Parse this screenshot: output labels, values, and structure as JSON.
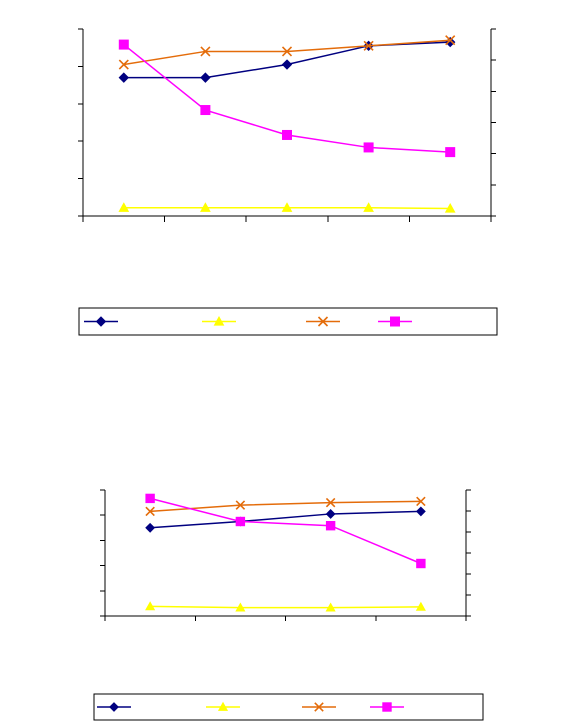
{
  "colors": {
    "navy": "#000080",
    "yellow": "#FFFF00",
    "orange": "#E46C0A",
    "magenta": "#FF00FF"
  },
  "chart_data": [
    {
      "type": "line",
      "dual_axis": true,
      "x": [
        1,
        2,
        3,
        4,
        5
      ],
      "left_ylim": [
        0,
        5
      ],
      "left_ticks": 6,
      "right_ylim": [
        0,
        6
      ],
      "right_ticks": 7,
      "xticks": 6,
      "grid": false,
      "legend_position": "bottom",
      "series": [
        {
          "marker": "diamond",
          "color": "#000080",
          "axis": "left",
          "values": [
            3.7,
            3.7,
            4.05,
            4.55,
            4.65
          ]
        },
        {
          "marker": "triangle",
          "color": "#FFFF00",
          "axis": "left",
          "values": [
            0.22,
            0.22,
            0.22,
            0.22,
            0.2
          ]
        },
        {
          "marker": "x",
          "color": "#E46C0A",
          "axis": "left",
          "values": [
            4.05,
            4.4,
            4.4,
            4.55,
            4.7
          ]
        },
        {
          "marker": "square",
          "color": "#FF00FF",
          "axis": "right",
          "values": [
            5.5,
            3.4,
            2.6,
            2.2,
            2.05
          ]
        }
      ]
    },
    {
      "type": "line",
      "dual_axis": true,
      "x": [
        1,
        2,
        3,
        4
      ],
      "left_ylim": [
        0,
        5
      ],
      "left_ticks": 6,
      "right_ylim": [
        0,
        6
      ],
      "right_ticks": 7,
      "xticks": 5,
      "grid": false,
      "legend_position": "bottom",
      "series": [
        {
          "marker": "diamond",
          "color": "#000080",
          "axis": "left",
          "values": [
            3.5,
            3.75,
            4.05,
            4.15
          ]
        },
        {
          "marker": "triangle",
          "color": "#FFFF00",
          "axis": "left",
          "values": [
            0.38,
            0.33,
            0.33,
            0.36
          ]
        },
        {
          "marker": "x",
          "color": "#E46C0A",
          "axis": "left",
          "values": [
            4.15,
            4.4,
            4.5,
            4.55
          ]
        },
        {
          "marker": "square",
          "color": "#FF00FF",
          "axis": "right",
          "values": [
            5.6,
            4.5,
            4.3,
            2.5
          ]
        }
      ]
    }
  ]
}
